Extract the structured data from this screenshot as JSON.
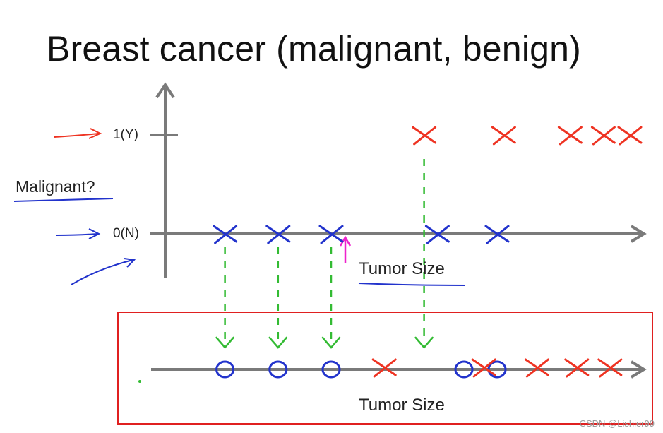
{
  "title": "Breast cancer (malignant, benign)",
  "watermark": "CSDN @Lishier99",
  "colors": {
    "malignant": "#ee3322",
    "benign": "#2233cc",
    "projection": "#33bb33",
    "threshold": "#ee22cc",
    "axis": "#7a7a7a",
    "box": "#e02020"
  },
  "chart_data": [
    {
      "type": "scatter",
      "title": "Breast cancer (malignant, benign)",
      "xlabel": "Tumor Size",
      "ylabel": "Malignant?",
      "yticks": [
        "1(Y)",
        "0(N)"
      ],
      "y_values": [
        1,
        0
      ],
      "series": [
        {
          "marker": "x",
          "color": "#ee3322",
          "y": 1,
          "x": [
            3.9,
            5.1,
            6.1,
            6.6,
            7.0
          ]
        },
        {
          "marker": "x",
          "color": "#2233cc",
          "y": 0,
          "x": [
            0.9,
            1.7,
            2.5,
            4.1,
            5.0
          ]
        }
      ],
      "annotations": [
        "projection arrows to lower axis",
        "threshold arrow at x=2.8"
      ]
    },
    {
      "type": "scatter",
      "xlabel": "Tumor Size",
      "series": [
        {
          "marker": "o",
          "color": "#2233cc",
          "x": [
            0.9,
            1.7,
            2.5,
            4.5,
            5.0
          ]
        },
        {
          "marker": "x",
          "color": "#ee3322",
          "x": [
            3.3,
            4.8,
            5.6,
            6.2,
            6.7
          ]
        }
      ]
    }
  ]
}
